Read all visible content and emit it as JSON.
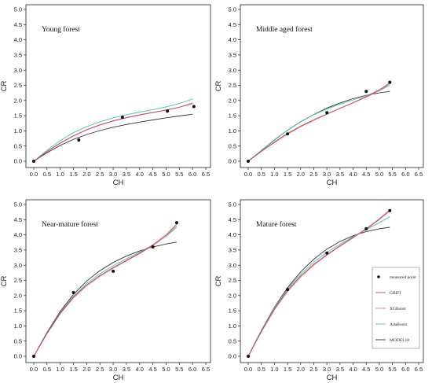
{
  "colors": {
    "GBDT": "#d9404f",
    "XGBoost": "#c98a8f",
    "AdaBoost": "#3fc6b1",
    "MODEL18": "#333333",
    "measured": "#111111"
  },
  "legend": {
    "entries": [
      {
        "key": "measured",
        "label": "measured point",
        "kind": "point"
      },
      {
        "key": "GBDT",
        "label": "GBDT",
        "kind": "line"
      },
      {
        "key": "XGBoost",
        "label": "XGBoost",
        "kind": "line"
      },
      {
        "key": "AdaBoost",
        "label": "AdaBoost",
        "kind": "line"
      },
      {
        "key": "MODEL18",
        "label": "MODEL18",
        "kind": "line"
      }
    ]
  },
  "chart_data": [
    {
      "type": "line",
      "title": "Young forest",
      "xlabel": "CH",
      "ylabel": "CR",
      "xlim": [
        0,
        6.5
      ],
      "ylim": [
        0,
        5
      ],
      "xticks": [
        0,
        0.5,
        1,
        1.5,
        2,
        2.5,
        3,
        3.5,
        4,
        4.5,
        5,
        5.5,
        6,
        6.5
      ],
      "yticks": [
        0,
        0.5,
        1,
        1.5,
        2,
        2.5,
        3,
        3.5,
        4,
        4.5,
        5
      ],
      "points": {
        "x": [
          0,
          1.7,
          3.35,
          5.05,
          6.05
        ],
        "y": [
          0,
          0.7,
          1.45,
          1.65,
          1.8
        ]
      },
      "series": [
        {
          "name": "GBDT",
          "x": [
            0,
            0.5,
            1,
            1.5,
            2,
            2.5,
            3,
            3.5,
            4,
            4.5,
            5,
            5.5,
            6
          ],
          "y": [
            0,
            0.32,
            0.6,
            0.84,
            1.04,
            1.2,
            1.33,
            1.44,
            1.53,
            1.61,
            1.69,
            1.78,
            1.9
          ]
        },
        {
          "name": "XGBoost",
          "x": [
            0,
            0.5,
            1,
            1.5,
            2,
            2.5,
            3,
            3.5,
            4,
            4.5,
            5,
            5.5,
            6
          ],
          "y": [
            0,
            0.31,
            0.59,
            0.83,
            1.03,
            1.19,
            1.32,
            1.43,
            1.52,
            1.6,
            1.68,
            1.78,
            1.92
          ]
        },
        {
          "name": "AdaBoost",
          "x": [
            0,
            0.5,
            1,
            1.5,
            2,
            2.5,
            3,
            3.5,
            4,
            4.5,
            5,
            5.5,
            6
          ],
          "y": [
            0,
            0.36,
            0.68,
            0.94,
            1.14,
            1.3,
            1.43,
            1.53,
            1.62,
            1.7,
            1.79,
            1.9,
            2.05
          ]
        },
        {
          "name": "MODEL18",
          "x": [
            0,
            0.5,
            1,
            1.5,
            2,
            2.5,
            3,
            3.5,
            4,
            4.5,
            5,
            5.5,
            6
          ],
          "y": [
            0,
            0.28,
            0.52,
            0.72,
            0.88,
            1.01,
            1.12,
            1.21,
            1.29,
            1.36,
            1.43,
            1.49,
            1.55
          ]
        }
      ]
    },
    {
      "type": "line",
      "title": "Middle aged forest",
      "xlabel": "CH",
      "ylabel": "CR",
      "xlim": [
        0,
        6.5
      ],
      "ylim": [
        0,
        5
      ],
      "xticks": [
        0,
        0.5,
        1,
        1.5,
        2,
        2.5,
        3,
        3.5,
        4,
        4.5,
        5,
        5.5,
        6,
        6.5
      ],
      "yticks": [
        0,
        0.5,
        1,
        1.5,
        2,
        2.5,
        3,
        3.5,
        4,
        4.5,
        5
      ],
      "points": {
        "x": [
          0,
          1.5,
          3.0,
          4.5,
          5.4
        ],
        "y": [
          0,
          0.9,
          1.6,
          2.3,
          2.6
        ]
      },
      "series": [
        {
          "name": "GBDT",
          "x": [
            0,
            0.5,
            1,
            1.5,
            2,
            2.5,
            3,
            3.5,
            4,
            4.5,
            5,
            5.4
          ],
          "y": [
            0,
            0.32,
            0.62,
            0.9,
            1.14,
            1.35,
            1.55,
            1.74,
            1.93,
            2.13,
            2.35,
            2.58
          ]
        },
        {
          "name": "XGBoost",
          "x": [
            0,
            0.5,
            1,
            1.5,
            2,
            2.5,
            3,
            3.5,
            4,
            4.5,
            5,
            5.4
          ],
          "y": [
            0,
            0.33,
            0.64,
            0.92,
            1.16,
            1.37,
            1.56,
            1.74,
            1.92,
            2.11,
            2.32,
            2.55
          ]
        },
        {
          "name": "AdaBoost",
          "x": [
            0,
            0.5,
            1,
            1.5,
            2,
            2.5,
            3,
            3.5,
            4,
            4.5,
            5,
            5.4
          ],
          "y": [
            0,
            0.36,
            0.71,
            1.02,
            1.3,
            1.53,
            1.72,
            1.88,
            2.02,
            2.16,
            2.32,
            2.5
          ]
        },
        {
          "name": "MODEL18",
          "x": [
            0,
            0.5,
            1,
            1.5,
            2,
            2.5,
            3,
            3.5,
            4,
            4.5,
            5,
            5.4
          ],
          "y": [
            0,
            0.35,
            0.7,
            1.02,
            1.3,
            1.54,
            1.75,
            1.92,
            2.06,
            2.17,
            2.25,
            2.3
          ]
        }
      ]
    },
    {
      "type": "line",
      "title": "Near-mature forest",
      "xlabel": "CH",
      "ylabel": "CR",
      "xlim": [
        0,
        6.5
      ],
      "ylim": [
        0,
        5
      ],
      "xticks": [
        0,
        0.5,
        1,
        1.5,
        2,
        2.5,
        3,
        3.5,
        4,
        4.5,
        5,
        5.5,
        6,
        6.5
      ],
      "yticks": [
        0,
        0.5,
        1,
        1.5,
        2,
        2.5,
        3,
        3.5,
        4,
        4.5,
        5
      ],
      "points": {
        "x": [
          0,
          1.5,
          3.0,
          4.5,
          5.4
        ],
        "y": [
          0,
          2.1,
          2.8,
          3.6,
          4.4
        ]
      },
      "series": [
        {
          "name": "GBDT",
          "x": [
            0,
            0.5,
            1,
            1.5,
            2,
            2.5,
            3,
            3.5,
            4,
            4.5,
            5,
            5.4
          ],
          "y": [
            0,
            0.75,
            1.42,
            1.95,
            2.35,
            2.66,
            2.92,
            3.16,
            3.4,
            3.67,
            4.0,
            4.35
          ]
        },
        {
          "name": "XGBoost",
          "x": [
            0,
            0.5,
            1,
            1.5,
            2,
            2.5,
            3,
            3.5,
            4,
            4.5,
            5,
            5.4
          ],
          "y": [
            0,
            0.74,
            1.4,
            1.92,
            2.32,
            2.63,
            2.9,
            3.14,
            3.38,
            3.64,
            3.96,
            4.3
          ]
        },
        {
          "name": "AdaBoost",
          "x": [
            0,
            0.5,
            1,
            1.5,
            2,
            2.5,
            3,
            3.5,
            4,
            4.5,
            5,
            5.4
          ],
          "y": [
            0,
            0.76,
            1.44,
            1.98,
            2.4,
            2.72,
            2.98,
            3.21,
            3.43,
            3.66,
            3.95,
            4.25
          ]
        },
        {
          "name": "MODEL18",
          "x": [
            0,
            0.5,
            1,
            1.5,
            2,
            2.5,
            3,
            3.5,
            4,
            4.5,
            5,
            5.4
          ],
          "y": [
            0,
            0.78,
            1.48,
            2.04,
            2.48,
            2.82,
            3.09,
            3.3,
            3.47,
            3.6,
            3.7,
            3.76
          ]
        }
      ]
    },
    {
      "type": "line",
      "title": "Mature forest",
      "xlabel": "CH",
      "ylabel": "CR",
      "xlim": [
        0,
        6.5
      ],
      "ylim": [
        0,
        5
      ],
      "xticks": [
        0,
        0.5,
        1,
        1.5,
        2,
        2.5,
        3,
        3.5,
        4,
        4.5,
        5,
        5.5,
        6,
        6.5
      ],
      "yticks": [
        0,
        0.5,
        1,
        1.5,
        2,
        2.5,
        3,
        3.5,
        4,
        4.5,
        5
      ],
      "points": {
        "x": [
          0,
          1.5,
          3.0,
          4.5,
          5.4
        ],
        "y": [
          0,
          2.2,
          3.4,
          4.2,
          4.8
        ]
      },
      "series": [
        {
          "name": "GBDT",
          "x": [
            0,
            0.5,
            1,
            1.5,
            2,
            2.5,
            3,
            3.5,
            4,
            4.5,
            5,
            5.4
          ],
          "y": [
            0,
            0.82,
            1.56,
            2.17,
            2.65,
            3.03,
            3.35,
            3.64,
            3.92,
            4.2,
            4.52,
            4.82
          ]
        },
        {
          "name": "XGBoost",
          "x": [
            0,
            0.5,
            1,
            1.5,
            2,
            2.5,
            3,
            3.5,
            4,
            4.5,
            5,
            5.4
          ],
          "y": [
            0,
            0.8,
            1.53,
            2.13,
            2.61,
            3.0,
            3.33,
            3.62,
            3.9,
            4.18,
            4.5,
            4.78
          ]
        },
        {
          "name": "AdaBoost",
          "x": [
            0,
            0.5,
            1,
            1.5,
            2,
            2.5,
            3,
            3.5,
            4,
            4.5,
            5,
            5.4
          ],
          "y": [
            0,
            0.84,
            1.6,
            2.22,
            2.71,
            3.1,
            3.42,
            3.69,
            3.94,
            4.17,
            4.4,
            4.6
          ]
        },
        {
          "name": "MODEL18",
          "x": [
            0,
            0.5,
            1,
            1.5,
            2,
            2.5,
            3,
            3.5,
            4,
            4.5,
            5,
            5.4
          ],
          "y": [
            0,
            0.85,
            1.62,
            2.26,
            2.78,
            3.2,
            3.53,
            3.78,
            3.97,
            4.11,
            4.2,
            4.25
          ]
        }
      ]
    }
  ]
}
